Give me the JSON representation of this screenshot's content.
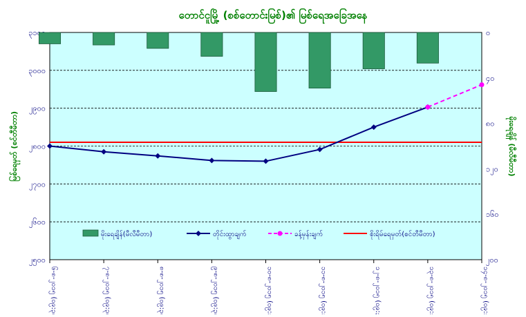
{
  "chart_data": {
    "type": "bar+line",
    "title": "တောင်ငူမြို့ (စစ်တောင်းမြစ်)၏ မြစ်ရေအခြေအနေ",
    "ylabel_left": "မြစ်ရေမှတ် (စင်တီမီတာ)",
    "ylabel_right": "မိုးရေချိန် (မီလီမီတာ)",
    "categories": [
      "၆-၈-၂၀၁၅ (၀၉:၃၀)",
      "၇-၈-၂၀၁၅ (၀၉:၃၀)",
      "၈-၈-၂၀၁၅ (၀၉:၃၀)",
      "၉-၈-၂၀၁၅ (၀၉:၃၀)",
      "၁၀-၈-၂၀၁၅ (၀၉:၃၀)",
      "၁၁-၈-၂၀၁၅ (၀၉:၃၀)",
      "၁၂-၈-၂၀၁၅ (၀၉:၃၀)",
      "၁၃-၈-၂၀၁၅ (၀၉:၃၀)",
      "၁၄-၈-၂၀၁၅ (၀၉:၃၀)"
    ],
    "left_axis": {
      "ylim": [
        2500,
        3100
      ],
      "ticks": [
        2500,
        2600,
        2700,
        2800,
        2900,
        3000,
        3100
      ],
      "tick_labels": [
        "၂၅၀၀",
        "၂၆၀၀",
        "၂၇၀၀",
        "၂၈၀၀",
        "၂၉၀၀",
        "၃၀၀၀",
        "၃၁၀၀"
      ]
    },
    "right_axis": {
      "ylim": [
        0,
        200
      ],
      "inverted": true,
      "ticks": [
        0,
        40,
        80,
        120,
        160,
        200
      ],
      "tick_labels": [
        "၀",
        "၄၀",
        "၈၀",
        "၁၂၀",
        "၁၆၀",
        "၂၀၀"
      ]
    },
    "series": [
      {
        "name": "မိုးရေချိန်(မီလီမီတာ)",
        "kind": "bar",
        "axis": "right",
        "color": "#339966",
        "values": [
          10,
          11,
          14,
          21,
          52,
          49,
          32,
          27,
          null
        ]
      },
      {
        "name": "တိုင်းထွာချက်",
        "kind": "line",
        "axis": "left",
        "color": "#000080",
        "values": [
          2800,
          2785,
          2774,
          2762,
          2760,
          2791,
          2850,
          2903,
          null
        ]
      },
      {
        "name": "ခန့်မှန်းချက်",
        "kind": "line",
        "axis": "left",
        "color": "#ff00ff",
        "dashed": true,
        "values": [
          null,
          null,
          null,
          null,
          null,
          null,
          null,
          2903,
          2962
        ]
      },
      {
        "name": "စိုးရိမ်ရေမှတ်(စင်တီမီတာ)",
        "kind": "hline",
        "axis": "left",
        "color": "#ff0000",
        "value": 2810
      }
    ],
    "grid": true,
    "grid_style": "dashed-horizontal",
    "legend_position": "bottom-inside"
  },
  "colors": {
    "plot_background": "#ccffff",
    "title_color": "#008000",
    "axis_label_color": "#008000",
    "tick_label_color": "#000080"
  }
}
